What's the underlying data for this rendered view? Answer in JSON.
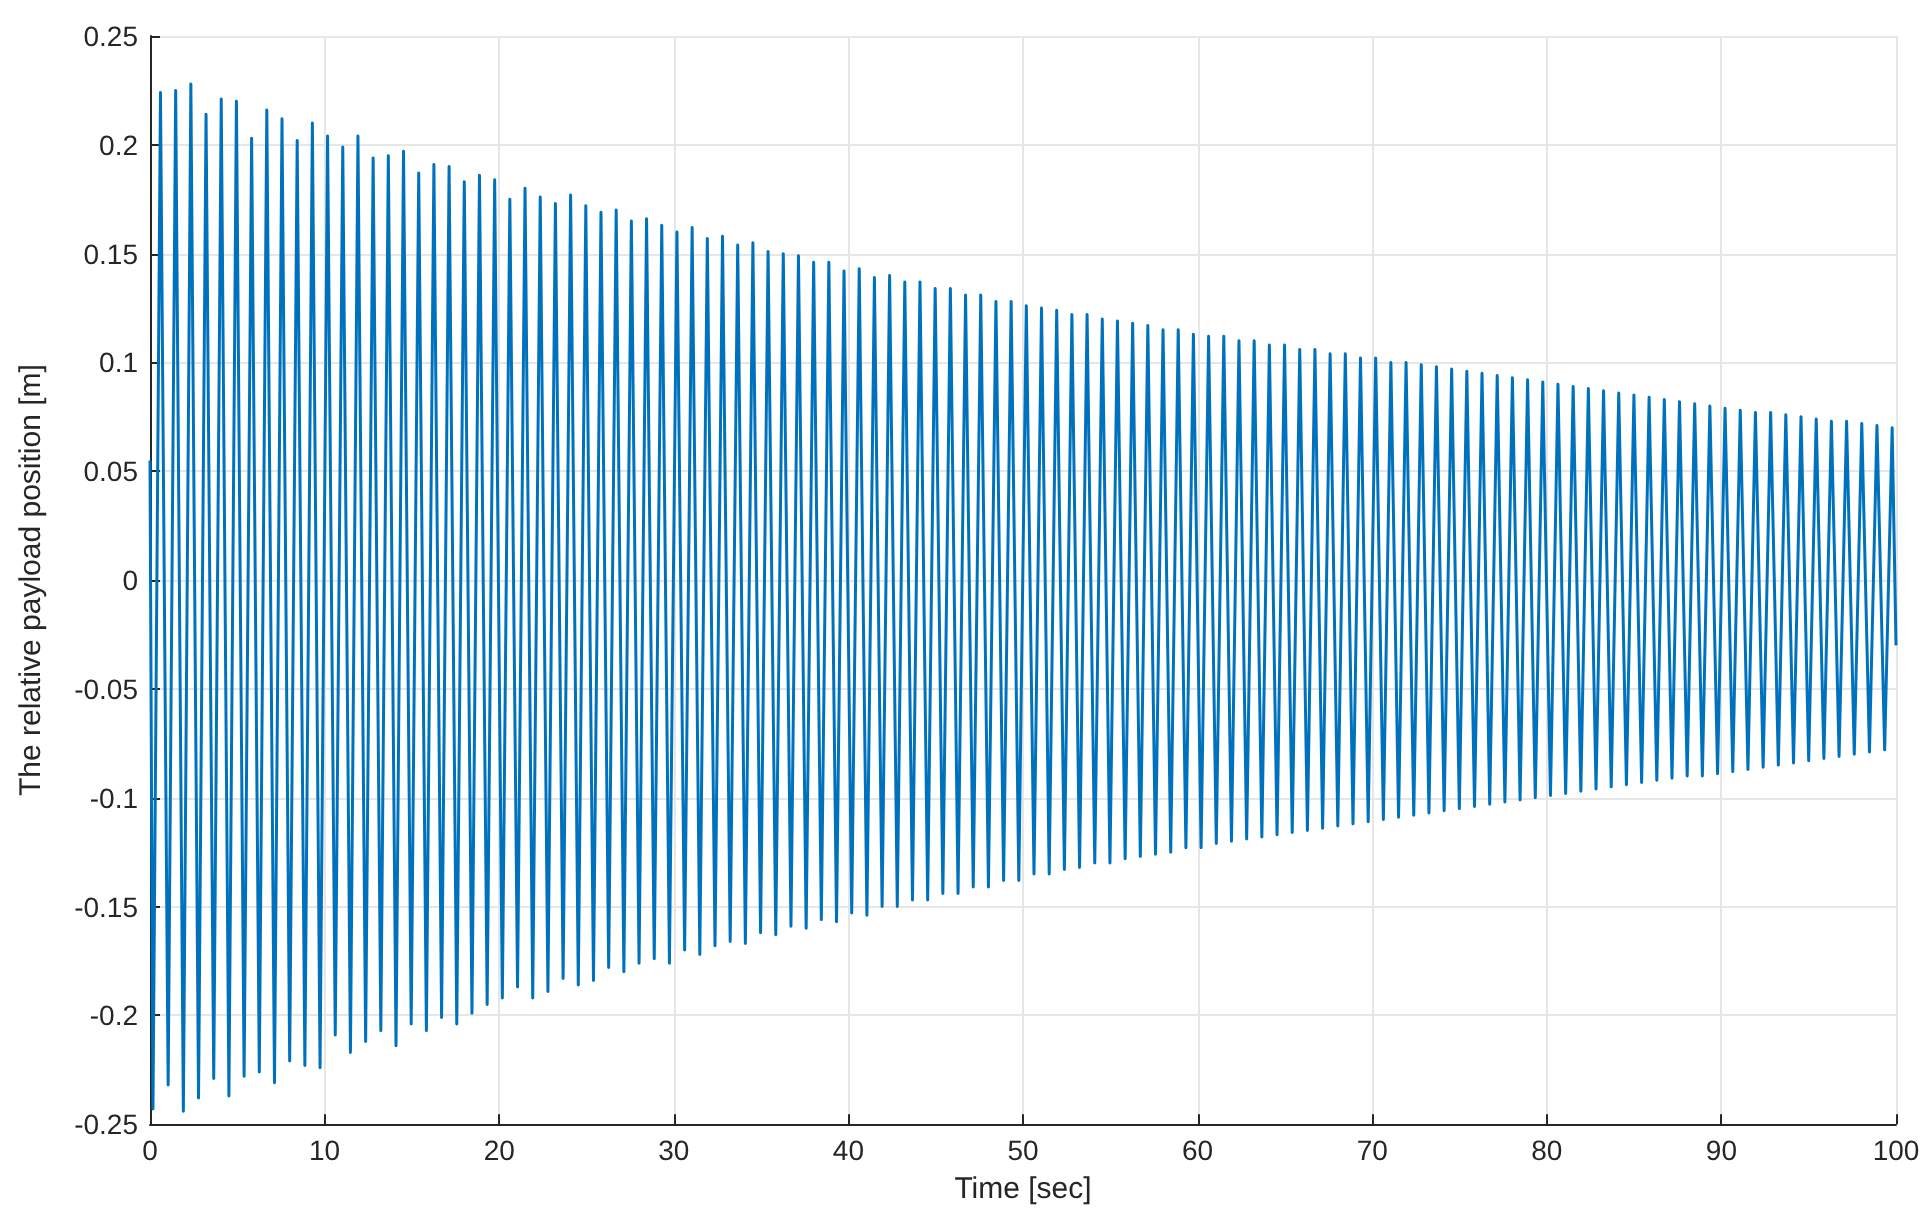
{
  "chart_data": {
    "type": "line",
    "xlabel": "Time [sec]",
    "ylabel": "The relative payload position [m]",
    "xlim": [
      0,
      100
    ],
    "xticks": [
      0,
      10,
      20,
      30,
      40,
      50,
      60,
      70,
      80,
      90,
      100
    ],
    "ylim": [
      -0.25,
      0.25
    ],
    "yticks": [
      -0.25,
      -0.2,
      -0.15,
      -0.1,
      -0.05,
      0,
      0.05,
      0.1,
      0.15,
      0.2,
      0.25
    ],
    "grid": true,
    "marker": "none",
    "line_style": "solid",
    "series": [
      {
        "color": "#0072bd",
        "x": [
          0,
          0.17,
          0.6,
          1.04,
          1.47,
          1.91,
          2.34,
          2.78,
          3.21,
          3.65,
          4.08,
          4.52,
          4.95,
          5.39,
          5.82,
          6.26,
          6.69,
          7.13,
          7.56,
          8.0,
          8.43,
          8.87,
          9.3,
          9.74,
          10.17,
          10.61,
          11.04,
          11.48,
          11.91,
          12.35,
          12.78,
          13.22,
          13.65,
          14.09,
          14.52,
          14.96,
          15.39,
          15.83,
          16.26,
          16.7,
          17.13,
          17.57,
          18.0,
          18.44,
          18.87,
          19.31,
          19.74,
          20.18,
          20.61,
          21.05,
          21.48,
          21.92,
          22.35,
          22.79,
          23.22,
          23.66,
          24.09,
          24.53,
          24.96,
          25.4,
          25.83,
          26.27,
          26.7,
          27.14,
          27.57,
          28.01,
          28.44,
          28.88,
          29.31,
          29.75,
          30.18,
          30.62,
          31.05,
          31.49,
          31.92,
          32.36,
          32.79,
          33.23,
          33.66,
          34.1,
          34.53,
          34.97,
          35.4,
          35.84,
          36.27,
          36.71,
          37.14,
          37.58,
          38.01,
          38.45,
          38.88,
          39.32,
          39.75,
          40.19,
          40.62,
          41.06,
          41.49,
          41.93,
          42.36,
          42.8,
          43.23,
          43.67,
          44.1,
          44.54,
          44.97,
          45.41,
          45.84,
          46.28,
          46.71,
          47.15,
          47.58,
          48.02,
          48.45,
          48.89,
          49.32,
          49.76,
          50.19,
          50.63,
          51.06,
          51.5,
          51.93,
          52.37,
          52.8,
          53.24,
          53.67,
          54.11,
          54.54,
          54.98,
          55.41,
          55.85,
          56.28,
          56.72,
          57.15,
          57.59,
          58.02,
          58.46,
          58.89,
          59.33,
          59.76,
          60.2,
          60.63,
          61.07,
          61.5,
          61.94,
          62.37,
          62.81,
          63.24,
          63.68,
          64.11,
          64.55,
          64.98,
          65.42,
          65.85,
          66.29,
          66.72,
          67.16,
          67.59,
          68.03,
          68.46,
          68.9,
          69.33,
          69.77,
          70.2,
          70.64,
          71.07,
          71.51,
          71.94,
          72.38,
          72.81,
          73.25,
          73.68,
          74.12,
          74.55,
          74.99,
          75.42,
          75.86,
          76.29,
          76.73,
          77.16,
          77.6,
          78.03,
          78.47,
          78.9,
          79.34,
          79.77,
          80.21,
          80.64,
          81.08,
          81.51,
          81.95,
          82.38,
          82.82,
          83.25,
          83.69,
          84.12,
          84.56,
          84.99,
          85.43,
          85.86,
          86.3,
          86.73,
          87.17,
          87.6,
          88.04,
          88.47,
          88.91,
          89.34,
          89.78,
          90.21,
          90.65,
          91.08,
          91.52,
          91.95,
          92.39,
          92.82,
          93.26,
          93.69,
          94.13,
          94.56,
          95.0,
          95.43,
          95.87,
          96.3,
          96.74,
          97.17,
          97.61,
          98.04,
          98.48,
          98.91,
          99.35,
          99.78,
          100
        ],
        "values": [
          0.055,
          -0.243,
          0.224,
          -0.232,
          0.225,
          -0.244,
          0.228,
          -0.238,
          0.214,
          -0.229,
          0.221,
          -0.237,
          0.22,
          -0.228,
          0.203,
          -0.226,
          0.216,
          -0.231,
          0.212,
          -0.221,
          0.202,
          -0.223,
          0.21,
          -0.224,
          0.204,
          -0.209,
          0.199,
          -0.217,
          0.204,
          -0.212,
          0.194,
          -0.207,
          0.195,
          -0.214,
          0.197,
          -0.204,
          0.187,
          -0.207,
          0.191,
          -0.201,
          0.19,
          -0.204,
          0.183,
          -0.199,
          0.186,
          -0.195,
          0.184,
          -0.192,
          0.175,
          -0.187,
          0.18,
          -0.192,
          0.176,
          -0.189,
          0.173,
          -0.183,
          0.177,
          -0.186,
          0.172,
          -0.184,
          0.169,
          -0.178,
          0.17,
          -0.18,
          0.165,
          -0.176,
          0.166,
          -0.174,
          0.163,
          -0.176,
          0.16,
          -0.17,
          0.162,
          -0.172,
          0.157,
          -0.168,
          0.158,
          -0.166,
          0.154,
          -0.167,
          0.155,
          -0.162,
          0.151,
          -0.163,
          0.15,
          -0.159,
          0.149,
          -0.16,
          0.146,
          -0.156,
          0.146,
          -0.157,
          0.142,
          -0.153,
          0.143,
          -0.154,
          0.139,
          -0.15,
          0.14,
          -0.15,
          0.137,
          -0.147,
          0.137,
          -0.147,
          0.134,
          -0.144,
          0.134,
          -0.144,
          0.131,
          -0.141,
          0.131,
          -0.141,
          0.128,
          -0.138,
          0.128,
          -0.138,
          0.126,
          -0.135,
          0.125,
          -0.135,
          0.124,
          -0.133,
          0.122,
          -0.132,
          0.122,
          -0.13,
          0.12,
          -0.13,
          0.119,
          -0.128,
          0.118,
          -0.127,
          0.117,
          -0.126,
          0.115,
          -0.125,
          0.115,
          -0.123,
          0.113,
          -0.123,
          0.112,
          -0.121,
          0.112,
          -0.12,
          0.11,
          -0.119,
          0.11,
          -0.118,
          0.108,
          -0.117,
          0.108,
          -0.116,
          0.106,
          -0.115,
          0.106,
          -0.114,
          0.104,
          -0.113,
          0.104,
          -0.112,
          0.102,
          -0.111,
          0.102,
          -0.11,
          0.1,
          -0.109,
          0.1,
          -0.108,
          0.099,
          -0.107,
          0.098,
          -0.106,
          0.097,
          -0.105,
          0.096,
          -0.104,
          0.095,
          -0.103,
          0.094,
          -0.102,
          0.093,
          -0.101,
          0.092,
          -0.1,
          0.091,
          -0.099,
          0.09,
          -0.098,
          0.089,
          -0.097,
          0.088,
          -0.096,
          0.087,
          -0.095,
          0.086,
          -0.094,
          0.085,
          -0.093,
          0.084,
          -0.092,
          0.083,
          -0.091,
          0.082,
          -0.09,
          0.081,
          -0.09,
          0.08,
          -0.089,
          0.079,
          -0.088,
          0.078,
          -0.087,
          0.077,
          -0.086,
          0.077,
          -0.085,
          0.076,
          -0.084,
          0.075,
          -0.083,
          0.074,
          -0.082,
          0.073,
          -0.081,
          0.073,
          -0.08,
          0.072,
          -0.079,
          0.071,
          -0.078,
          0.07,
          -0.03
        ]
      }
    ]
  }
}
